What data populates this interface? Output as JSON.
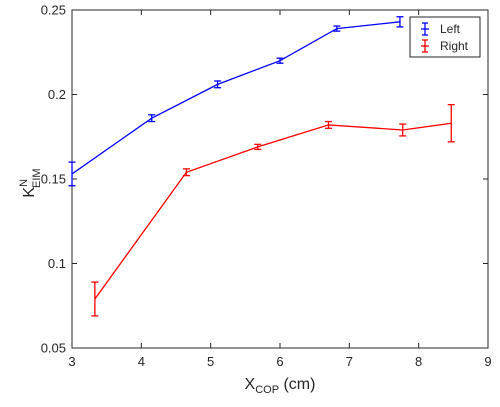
{
  "chart_data": {
    "type": "line",
    "xlabel": {
      "main": "X",
      "sub": "COP",
      "unit": " (cm)"
    },
    "ylabel": {
      "main": "K",
      "sup": "N",
      "sub": "EIM"
    },
    "xlim": [
      3,
      9
    ],
    "ylim": [
      0.05,
      0.25
    ],
    "xticks": [
      3,
      4,
      5,
      6,
      7,
      8,
      9
    ],
    "yticks": [
      0.05,
      0.1,
      0.15,
      0.2,
      0.25
    ],
    "xtick_labels": [
      "3",
      "4",
      "5",
      "6",
      "7",
      "8",
      "9"
    ],
    "ytick_labels": [
      "0.05",
      "0.1",
      "0.15",
      "0.2",
      "0.25"
    ],
    "grid": false,
    "legend_position": "top-right",
    "series": [
      {
        "name": "Left",
        "color": "#0000ff",
        "x": [
          3.0,
          4.15,
          5.1,
          6.0,
          6.82,
          7.73
        ],
        "y": [
          0.153,
          0.186,
          0.206,
          0.22,
          0.239,
          0.243
        ],
        "error": [
          0.007,
          0.002,
          0.002,
          0.0015,
          0.0015,
          0.003
        ]
      },
      {
        "name": "Right",
        "color": "#ff0000",
        "x": [
          3.33,
          4.65,
          5.68,
          6.7,
          7.77,
          8.47
        ],
        "y": [
          0.079,
          0.154,
          0.169,
          0.182,
          0.179,
          0.183
        ],
        "error": [
          0.01,
          0.002,
          0.0015,
          0.002,
          0.0035,
          0.011
        ]
      }
    ]
  }
}
